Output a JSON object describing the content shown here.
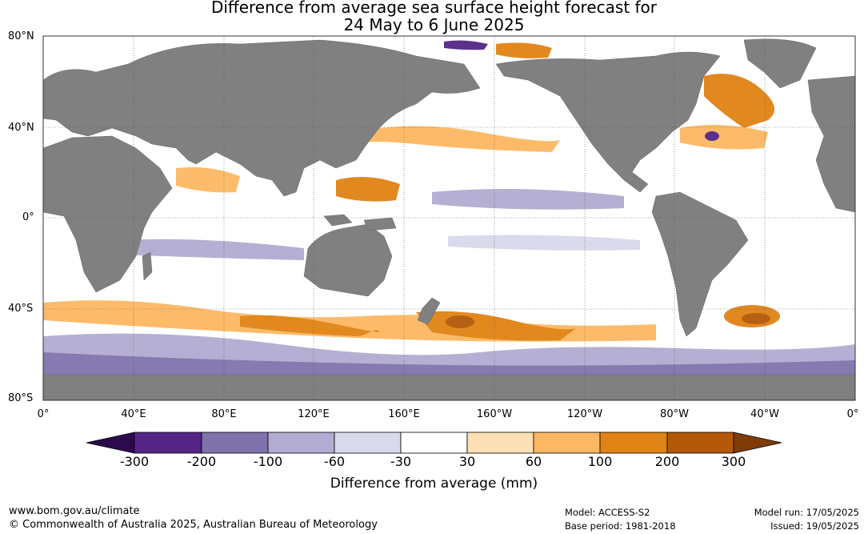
{
  "title": {
    "line1": "Difference from average sea surface height forecast for",
    "line2": "24 May to 6 June 2025"
  },
  "map": {
    "lat_labels": [
      "80°N",
      "40°N",
      "0°",
      "40°S",
      "80°S"
    ],
    "lon_labels": [
      "0°",
      "40°E",
      "80°E",
      "120°E",
      "160°E",
      "160°W",
      "120°W",
      "80°W",
      "40°W",
      "0°"
    ],
    "land_color": "#808080",
    "graticule": "dotted"
  },
  "legend": {
    "title": "Difference from average (mm)",
    "tick_labels": [
      "-300",
      "-200",
      "-100",
      "-60",
      "-30",
      "30",
      "60",
      "100",
      "200",
      "300"
    ],
    "colors": [
      "#2d0a4e",
      "#542587",
      "#8073ac",
      "#b2abd2",
      "#d8daeb",
      "#ffffff",
      "#fee0b6",
      "#fdb863",
      "#e08214",
      "#b35806",
      "#7f3b08"
    ]
  },
  "footer": {
    "url": "www.bom.gov.au/climate",
    "copyright": "© Commonwealth of Australia 2025, Australian Bureau of Meteorology",
    "model": "Model: ACCESS-S2",
    "base_period": "Base period: 1981-2018",
    "model_run": "Model run: 17/05/2025",
    "issued": "Issued: 19/05/2025"
  }
}
